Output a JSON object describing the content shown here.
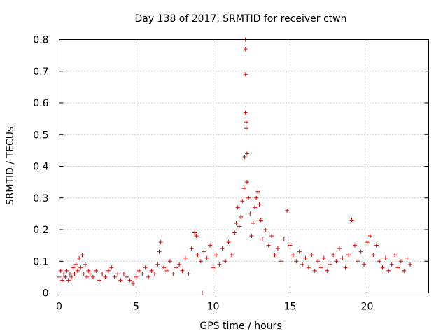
{
  "chart_data": {
    "type": "scatter",
    "title": "Day 138 of 2017, SRMTID for receiver ctwn",
    "xlabel": "GPS time / hours",
    "ylabel": "SRMTID / TECUs",
    "xlim": [
      0,
      24
    ],
    "ylim": [
      0,
      0.8
    ],
    "x_ticks": [
      "0",
      "5",
      "10",
      "15",
      "20"
    ],
    "y_ticks": [
      "0",
      "0.1",
      "0.2",
      "0.3",
      "0.4",
      "0.5",
      "0.6",
      "0.7",
      "0.8"
    ],
    "x_tick_values": [
      0,
      5,
      10,
      15,
      20
    ],
    "y_tick_values": [
      0,
      0.1,
      0.2,
      0.3,
      0.4,
      0.5,
      0.6,
      0.7,
      0.8
    ],
    "grid": true,
    "marker": "plus",
    "color": "#e00000",
    "data_range_hours": [
      0,
      22.8
    ],
    "spike": {
      "x": 12.1,
      "y_max": 0.8
    },
    "series": [
      {
        "name": "SRMTID",
        "points": [
          [
            0.0,
            0.05
          ],
          [
            0.1,
            0.07
          ],
          [
            0.2,
            0.04
          ],
          [
            0.3,
            0.06
          ],
          [
            0.4,
            0.05
          ],
          [
            0.5,
            0.07
          ],
          [
            0.6,
            0.04
          ],
          [
            0.7,
            0.06
          ],
          [
            0.8,
            0.05
          ],
          [
            0.9,
            0.08
          ],
          [
            1.0,
            0.06
          ],
          [
            1.1,
            0.09
          ],
          [
            1.2,
            0.07
          ],
          [
            1.3,
            0.11
          ],
          [
            1.4,
            0.08
          ],
          [
            1.5,
            0.12
          ],
          [
            1.6,
            0.06
          ],
          [
            1.7,
            0.09
          ],
          [
            1.8,
            0.05
          ],
          [
            1.9,
            0.07
          ],
          [
            2.0,
            0.06
          ],
          [
            2.2,
            0.05
          ],
          [
            2.4,
            0.07
          ],
          [
            2.6,
            0.04
          ],
          [
            2.8,
            0.06
          ],
          [
            3.0,
            0.05
          ],
          [
            3.2,
            0.07
          ],
          [
            3.4,
            0.08
          ],
          [
            3.6,
            0.05
          ],
          [
            3.8,
            0.06
          ],
          [
            4.0,
            0.04
          ],
          [
            4.2,
            0.06
          ],
          [
            4.4,
            0.05
          ],
          [
            4.6,
            0.04
          ],
          [
            4.8,
            0.03
          ],
          [
            5.0,
            0.05
          ],
          [
            5.2,
            0.07
          ],
          [
            5.4,
            0.06
          ],
          [
            5.6,
            0.08
          ],
          [
            5.8,
            0.05
          ],
          [
            6.0,
            0.07
          ],
          [
            6.2,
            0.06
          ],
          [
            6.4,
            0.09
          ],
          [
            6.5,
            0.13
          ],
          [
            6.6,
            0.16
          ],
          [
            6.8,
            0.08
          ],
          [
            7.0,
            0.07
          ],
          [
            7.2,
            0.1
          ],
          [
            7.4,
            0.06
          ],
          [
            7.6,
            0.08
          ],
          [
            7.8,
            0.09
          ],
          [
            8.0,
            0.07
          ],
          [
            8.2,
            0.11
          ],
          [
            8.4,
            0.06
          ],
          [
            8.6,
            0.14
          ],
          [
            8.8,
            0.19
          ],
          [
            8.9,
            0.18
          ],
          [
            9.0,
            0.12
          ],
          [
            9.2,
            0.1
          ],
          [
            9.3,
            0.0
          ],
          [
            9.4,
            0.13
          ],
          [
            9.6,
            0.11
          ],
          [
            9.8,
            0.15
          ],
          [
            10.0,
            0.08
          ],
          [
            10.2,
            0.12
          ],
          [
            10.4,
            0.09
          ],
          [
            10.6,
            0.14
          ],
          [
            10.8,
            0.1
          ],
          [
            11.0,
            0.16
          ],
          [
            11.2,
            0.12
          ],
          [
            11.4,
            0.19
          ],
          [
            11.5,
            0.22
          ],
          [
            11.6,
            0.27
          ],
          [
            11.7,
            0.21
          ],
          [
            11.8,
            0.24
          ],
          [
            11.9,
            0.29
          ],
          [
            12.0,
            0.33
          ],
          [
            12.05,
            0.43
          ],
          [
            12.1,
            0.57
          ],
          [
            12.1,
            0.69
          ],
          [
            12.1,
            0.77
          ],
          [
            12.1,
            0.8
          ],
          [
            12.15,
            0.52
          ],
          [
            12.15,
            0.54
          ],
          [
            12.2,
            0.44
          ],
          [
            12.2,
            0.35
          ],
          [
            12.3,
            0.3
          ],
          [
            12.4,
            0.25
          ],
          [
            12.5,
            0.18
          ],
          [
            12.6,
            0.22
          ],
          [
            12.7,
            0.27
          ],
          [
            12.8,
            0.3
          ],
          [
            12.9,
            0.32
          ],
          [
            13.0,
            0.28
          ],
          [
            13.1,
            0.23
          ],
          [
            13.2,
            0.17
          ],
          [
            13.4,
            0.2
          ],
          [
            13.6,
            0.15
          ],
          [
            13.8,
            0.18
          ],
          [
            14.0,
            0.12
          ],
          [
            14.2,
            0.14
          ],
          [
            14.4,
            0.1
          ],
          [
            14.6,
            0.17
          ],
          [
            14.8,
            0.26
          ],
          [
            15.0,
            0.15
          ],
          [
            15.2,
            0.12
          ],
          [
            15.4,
            0.1
          ],
          [
            15.6,
            0.13
          ],
          [
            15.8,
            0.09
          ],
          [
            16.0,
            0.11
          ],
          [
            16.2,
            0.08
          ],
          [
            16.4,
            0.12
          ],
          [
            16.6,
            0.07
          ],
          [
            16.8,
            0.1
          ],
          [
            17.0,
            0.08
          ],
          [
            17.2,
            0.11
          ],
          [
            17.4,
            0.07
          ],
          [
            17.6,
            0.09
          ],
          [
            17.8,
            0.12
          ],
          [
            18.0,
            0.1
          ],
          [
            18.2,
            0.14
          ],
          [
            18.4,
            0.11
          ],
          [
            18.6,
            0.08
          ],
          [
            18.8,
            0.12
          ],
          [
            19.0,
            0.23
          ],
          [
            19.2,
            0.15
          ],
          [
            19.4,
            0.1
          ],
          [
            19.6,
            0.13
          ],
          [
            19.8,
            0.09
          ],
          [
            20.0,
            0.16
          ],
          [
            20.2,
            0.18
          ],
          [
            20.4,
            0.12
          ],
          [
            20.6,
            0.15
          ],
          [
            20.8,
            0.1
          ],
          [
            21.0,
            0.08
          ],
          [
            21.2,
            0.11
          ],
          [
            21.4,
            0.07
          ],
          [
            21.6,
            0.09
          ],
          [
            21.8,
            0.12
          ],
          [
            22.0,
            0.08
          ],
          [
            22.2,
            0.1
          ],
          [
            22.4,
            0.07
          ],
          [
            22.6,
            0.11
          ],
          [
            22.8,
            0.09
          ]
        ]
      }
    ]
  }
}
